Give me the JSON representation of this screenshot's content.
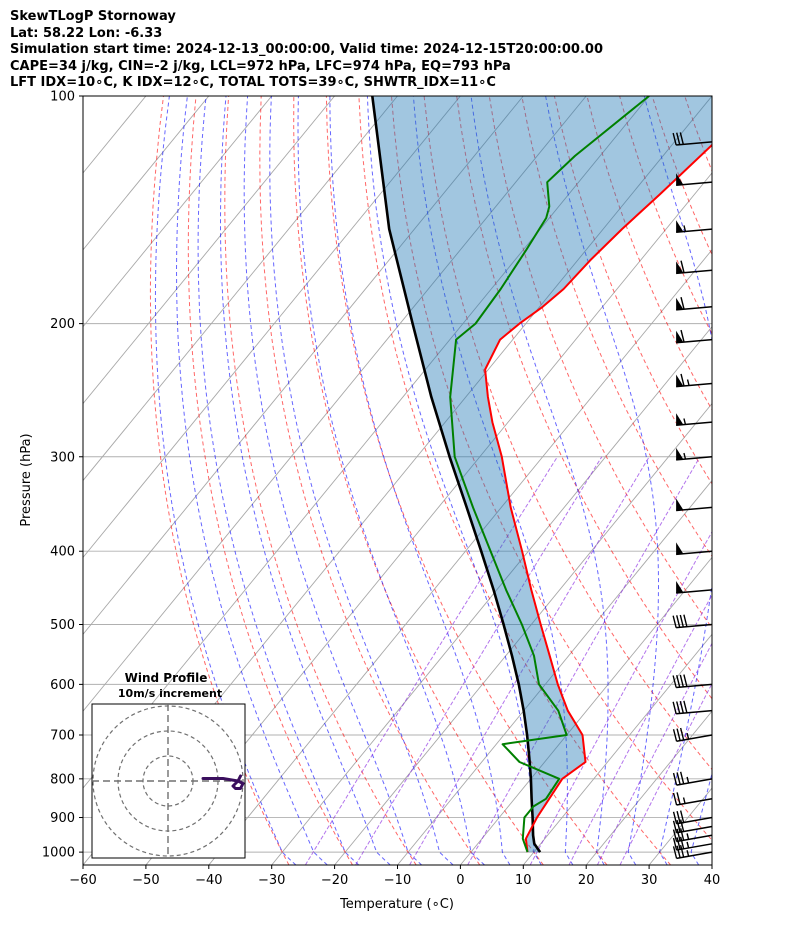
{
  "header": {
    "title": "SkewTLogP Stornoway",
    "location": "Lat: 58.22   Lon: -6.33",
    "times": "Simulation start time: 2024-12-13_00:00:00, Valid time: 2024-12-15T20:00:00.00",
    "indices1": "CAPE=34 j/kg, CIN=-2 j/kg, LCL=972 hPa, LFC=974 hPa, EQ=793 hPa",
    "indices2": "LFT IDX=10∘C, K IDX=12∘C, TOTAL TOTS=39∘C, SHWTR_IDX=11∘C"
  },
  "chart_data": {
    "type": "skewt-logp",
    "xlabel": "Temperature (∘C)",
    "ylabel": "Pressure (hPa)",
    "xlim": [
      -60,
      40
    ],
    "ylim": [
      1040,
      100
    ],
    "x_ticks": [
      "−60",
      "−50",
      "−40",
      "−30",
      "−20",
      "−10",
      "0",
      "10",
      "20",
      "30",
      "40"
    ],
    "x_tick_values": [
      -60,
      -50,
      -40,
      -30,
      -20,
      -10,
      0,
      10,
      20,
      30,
      40
    ],
    "y_ticks": [
      1000,
      900,
      800,
      700,
      600,
      500,
      400,
      300,
      200,
      100
    ],
    "grid": true,
    "colors": {
      "temperature": "#ff0000",
      "dewpoint": "#008000",
      "parcel": "#000000",
      "cape_fill": "#1f77b4",
      "dry_adiabats": "#ff0000",
      "moist_adiabats": "#0000ff",
      "mixing_ratio": "#8a2be2",
      "isotherms": "#808080"
    },
    "series": {
      "temperature": [
        {
          "p": 1000,
          "t": 9.0
        },
        {
          "p": 960,
          "t": 7.0
        },
        {
          "p": 900,
          "t": 6.0
        },
        {
          "p": 850,
          "t": 5.5
        },
        {
          "p": 800,
          "t": 5.0
        },
        {
          "p": 760,
          "t": 6.5
        },
        {
          "p": 700,
          "t": 2.5
        },
        {
          "p": 650,
          "t": -3.0
        },
        {
          "p": 600,
          "t": -8.0
        },
        {
          "p": 550,
          "t": -13.0
        },
        {
          "p": 500,
          "t": -18.5
        },
        {
          "p": 450,
          "t": -24.5
        },
        {
          "p": 400,
          "t": -31.0
        },
        {
          "p": 350,
          "t": -38.5
        },
        {
          "p": 300,
          "t": -46.5
        },
        {
          "p": 270,
          "t": -52.5
        },
        {
          "p": 250,
          "t": -56.5
        },
        {
          "p": 230,
          "t": -60.5
        },
        {
          "p": 210,
          "t": -62.0
        },
        {
          "p": 200,
          "t": -61.0
        },
        {
          "p": 190,
          "t": -59.5
        },
        {
          "p": 180,
          "t": -58.5
        },
        {
          "p": 165,
          "t": -58.0
        },
        {
          "p": 150,
          "t": -57.0
        },
        {
          "p": 135,
          "t": -55.5
        },
        {
          "p": 115,
          "t": -53.5
        },
        {
          "p": 100,
          "t": -52.0
        }
      ],
      "dewpoint": [
        {
          "p": 1000,
          "t": 9.0
        },
        {
          "p": 960,
          "t": 6.5
        },
        {
          "p": 900,
          "t": 4.0
        },
        {
          "p": 870,
          "t": 4.0
        },
        {
          "p": 850,
          "t": 5.0
        },
        {
          "p": 800,
          "t": 4.5
        },
        {
          "p": 760,
          "t": -4.0
        },
        {
          "p": 720,
          "t": -9.0
        },
        {
          "p": 700,
          "t": 0.0
        },
        {
          "p": 650,
          "t": -4.5
        },
        {
          "p": 600,
          "t": -11.0
        },
        {
          "p": 550,
          "t": -15.5
        },
        {
          "p": 500,
          "t": -21.5
        },
        {
          "p": 450,
          "t": -28.5
        },
        {
          "p": 400,
          "t": -36.0
        },
        {
          "p": 350,
          "t": -44.5
        },
        {
          "p": 300,
          "t": -54.0
        },
        {
          "p": 250,
          "t": -62.5
        },
        {
          "p": 210,
          "t": -69.0
        },
        {
          "p": 200,
          "t": -68.0
        },
        {
          "p": 180,
          "t": -68.5
        },
        {
          "p": 160,
          "t": -69.5
        },
        {
          "p": 145,
          "t": -70.5
        },
        {
          "p": 140,
          "t": -71.5
        },
        {
          "p": 130,
          "t": -75.0
        },
        {
          "p": 120,
          "t": -74.0
        },
        {
          "p": 100,
          "t": -70.0
        }
      ],
      "parcel": [
        {
          "p": 1000,
          "t": 11.0
        },
        {
          "p": 975,
          "t": 9.0
        },
        {
          "p": 950,
          "t": 7.7
        },
        {
          "p": 900,
          "t": 5.3
        },
        {
          "p": 850,
          "t": 2.7
        },
        {
          "p": 800,
          "t": 0.0
        },
        {
          "p": 750,
          "t": -3.0
        },
        {
          "p": 700,
          "t": -6.3
        },
        {
          "p": 650,
          "t": -10.0
        },
        {
          "p": 600,
          "t": -14.2
        },
        {
          "p": 550,
          "t": -19.0
        },
        {
          "p": 500,
          "t": -24.4
        },
        {
          "p": 450,
          "t": -30.5
        },
        {
          "p": 400,
          "t": -37.5
        },
        {
          "p": 350,
          "t": -45.5
        },
        {
          "p": 300,
          "t": -54.8
        },
        {
          "p": 250,
          "t": -65.5
        },
        {
          "p": 200,
          "t": -78.0
        },
        {
          "p": 150,
          "t": -94.0
        },
        {
          "p": 100,
          "t": -114.0
        }
      ]
    },
    "wind_barbs": [
      {
        "p": 1000,
        "speed_kt": 35,
        "dir_deg": 280
      },
      {
        "p": 975,
        "speed_kt": 35,
        "dir_deg": 280
      },
      {
        "p": 950,
        "speed_kt": 35,
        "dir_deg": 280
      },
      {
        "p": 925,
        "speed_kt": 30,
        "dir_deg": 280
      },
      {
        "p": 900,
        "speed_kt": 30,
        "dir_deg": 280
      },
      {
        "p": 850,
        "speed_kt": 25,
        "dir_deg": 280
      },
      {
        "p": 800,
        "speed_kt": 35,
        "dir_deg": 280
      },
      {
        "p": 700,
        "speed_kt": 35,
        "dir_deg": 280
      },
      {
        "p": 650,
        "speed_kt": 40,
        "dir_deg": 275
      },
      {
        "p": 600,
        "speed_kt": 40,
        "dir_deg": 275
      },
      {
        "p": 500,
        "speed_kt": 40,
        "dir_deg": 275
      },
      {
        "p": 450,
        "speed_kt": 50,
        "dir_deg": 275
      },
      {
        "p": 400,
        "speed_kt": 50,
        "dir_deg": 275
      },
      {
        "p": 350,
        "speed_kt": 50,
        "dir_deg": 275
      },
      {
        "p": 300,
        "speed_kt": 55,
        "dir_deg": 275
      },
      {
        "p": 270,
        "speed_kt": 55,
        "dir_deg": 275
      },
      {
        "p": 240,
        "speed_kt": 65,
        "dir_deg": 275
      },
      {
        "p": 210,
        "speed_kt": 60,
        "dir_deg": 275
      },
      {
        "p": 190,
        "speed_kt": 60,
        "dir_deg": 275
      },
      {
        "p": 170,
        "speed_kt": 60,
        "dir_deg": 275
      },
      {
        "p": 150,
        "speed_kt": 55,
        "dir_deg": 275
      },
      {
        "p": 130,
        "speed_kt": 50,
        "dir_deg": 275
      },
      {
        "p": 115,
        "speed_kt": 30,
        "dir_deg": 275
      }
    ],
    "hodograph": {
      "title": "Wind Profile",
      "subtitle": "10m/s increment",
      "ring_increment_ms": 10,
      "color": "#3b0f5e",
      "u_v_ms": [
        [
          14,
          1
        ],
        [
          22,
          1
        ],
        [
          28,
          0
        ],
        [
          30,
          -1
        ],
        [
          29,
          -3
        ],
        [
          27,
          -3
        ],
        [
          26,
          -2
        ],
        [
          28,
          0
        ],
        [
          29,
          2
        ]
      ]
    }
  }
}
